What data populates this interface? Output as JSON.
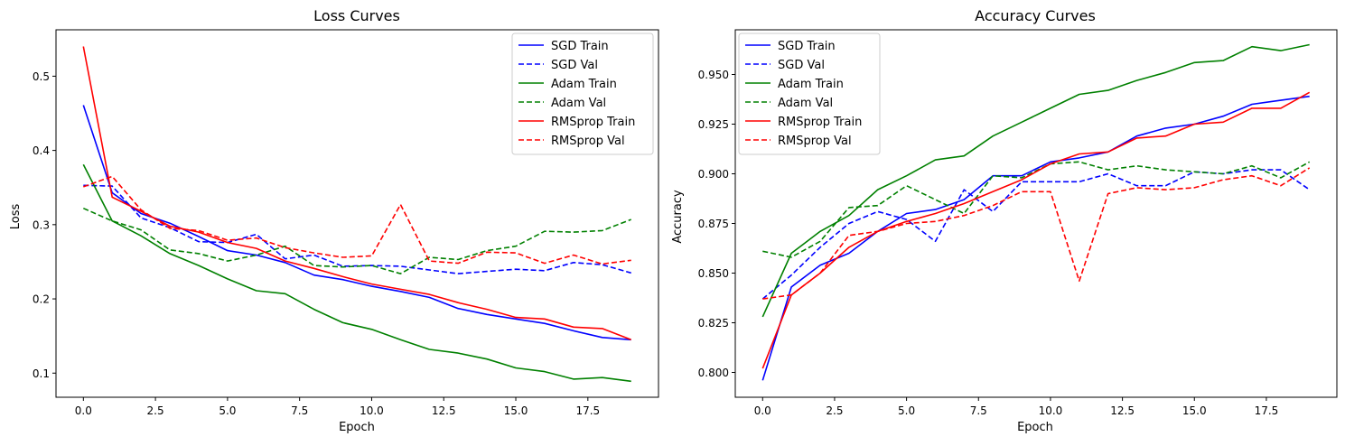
{
  "chart_data": [
    {
      "type": "line",
      "title": "Loss Curves",
      "xlabel": "Epoch",
      "ylabel": "Loss",
      "xlim": [
        -0.95,
        19.95
      ],
      "ylim": [
        0.0675,
        0.5625
      ],
      "xticks": [
        0,
        2.5,
        5,
        7.5,
        10,
        12.5,
        15,
        17.5
      ],
      "xtick_labels": [
        "0.0",
        "2.5",
        "5.0",
        "7.5",
        "10.0",
        "12.5",
        "15.0",
        "17.5"
      ],
      "yticks": [
        0.1,
        0.2,
        0.3,
        0.4,
        0.5
      ],
      "ytick_labels": [
        "0.1",
        "0.2",
        "0.3",
        "0.4",
        "0.5"
      ],
      "grid": false,
      "legend_position": "top-right",
      "x": [
        0,
        1,
        2,
        3,
        4,
        5,
        6,
        7,
        8,
        9,
        10,
        11,
        12,
        13,
        14,
        15,
        16,
        17,
        18,
        19
      ],
      "series": [
        {
          "name": "SGD Train",
          "color": "#0000ff",
          "dash": "solid",
          "values": [
            0.461,
            0.343,
            0.315,
            0.302,
            0.284,
            0.265,
            0.259,
            0.249,
            0.232,
            0.226,
            0.217,
            0.21,
            0.202,
            0.187,
            0.179,
            0.173,
            0.167,
            0.157,
            0.148,
            0.145
          ]
        },
        {
          "name": "SGD Val",
          "color": "#0000ff",
          "dash": "dashed",
          "values": [
            0.353,
            0.352,
            0.309,
            0.296,
            0.277,
            0.276,
            0.287,
            0.254,
            0.259,
            0.244,
            0.245,
            0.244,
            0.239,
            0.234,
            0.237,
            0.24,
            0.238,
            0.249,
            0.246,
            0.235
          ]
        },
        {
          "name": "Adam Train",
          "color": "#008000",
          "dash": "solid",
          "values": [
            0.381,
            0.305,
            0.285,
            0.261,
            0.245,
            0.227,
            0.211,
            0.207,
            0.186,
            0.168,
            0.159,
            0.145,
            0.132,
            0.127,
            0.119,
            0.107,
            0.102,
            0.092,
            0.094,
            0.089
          ]
        },
        {
          "name": "Adam Val",
          "color": "#008000",
          "dash": "dashed",
          "values": [
            0.322,
            0.305,
            0.293,
            0.266,
            0.261,
            0.251,
            0.259,
            0.271,
            0.245,
            0.243,
            0.245,
            0.234,
            0.256,
            0.253,
            0.265,
            0.271,
            0.291,
            0.29,
            0.292,
            0.307
          ]
        },
        {
          "name": "RMSprop Train",
          "color": "#ff0000",
          "dash": "solid",
          "values": [
            0.54,
            0.337,
            0.318,
            0.298,
            0.29,
            0.276,
            0.268,
            0.251,
            0.241,
            0.23,
            0.22,
            0.213,
            0.206,
            0.195,
            0.186,
            0.175,
            0.173,
            0.162,
            0.16,
            0.145
          ]
        },
        {
          "name": "RMSprop Val",
          "color": "#ff0000",
          "dash": "dashed",
          "values": [
            0.351,
            0.365,
            0.32,
            0.295,
            0.292,
            0.279,
            0.282,
            0.269,
            0.262,
            0.256,
            0.258,
            0.327,
            0.251,
            0.248,
            0.263,
            0.262,
            0.248,
            0.259,
            0.247,
            0.252
          ]
        }
      ]
    },
    {
      "type": "line",
      "title": "Accuracy Curves",
      "xlabel": "Epoch",
      "ylabel": "Accuracy",
      "xlim": [
        -0.95,
        19.95
      ],
      "ylim": [
        0.7875,
        0.9725
      ],
      "xticks": [
        0,
        2.5,
        5,
        7.5,
        10,
        12.5,
        15,
        17.5
      ],
      "xtick_labels": [
        "0.0",
        "2.5",
        "5.0",
        "7.5",
        "10.0",
        "12.5",
        "15.0",
        "17.5"
      ],
      "yticks": [
        0.8,
        0.825,
        0.85,
        0.875,
        0.9,
        0.925,
        0.95
      ],
      "ytick_labels": [
        "0.800",
        "0.825",
        "0.850",
        "0.875",
        "0.900",
        "0.925",
        "0.950"
      ],
      "grid": false,
      "legend_position": "top-left",
      "x": [
        0,
        1,
        2,
        3,
        4,
        5,
        6,
        7,
        8,
        9,
        10,
        11,
        12,
        13,
        14,
        15,
        16,
        17,
        18,
        19
      ],
      "series": [
        {
          "name": "SGD Train",
          "color": "#0000ff",
          "dash": "solid",
          "values": [
            0.796,
            0.843,
            0.854,
            0.86,
            0.871,
            0.88,
            0.882,
            0.887,
            0.899,
            0.899,
            0.906,
            0.908,
            0.911,
            0.919,
            0.923,
            0.925,
            0.929,
            0.935,
            0.937,
            0.939
          ]
        },
        {
          "name": "SGD Val",
          "color": "#0000ff",
          "dash": "dashed",
          "values": [
            0.837,
            0.849,
            0.863,
            0.875,
            0.881,
            0.877,
            0.866,
            0.892,
            0.881,
            0.896,
            0.896,
            0.896,
            0.9,
            0.894,
            0.894,
            0.901,
            0.9,
            0.902,
            0.902,
            0.892
          ]
        },
        {
          "name": "Adam Train",
          "color": "#008000",
          "dash": "solid",
          "values": [
            0.828,
            0.86,
            0.871,
            0.879,
            0.892,
            0.899,
            0.907,
            0.909,
            0.919,
            0.926,
            0.933,
            0.94,
            0.942,
            0.947,
            0.951,
            0.956,
            0.957,
            0.964,
            0.962,
            0.965
          ]
        },
        {
          "name": "Adam Val",
          "color": "#008000",
          "dash": "dashed",
          "values": [
            0.861,
            0.858,
            0.866,
            0.883,
            0.884,
            0.894,
            0.887,
            0.88,
            0.899,
            0.898,
            0.905,
            0.906,
            0.902,
            0.904,
            0.902,
            0.901,
            0.9,
            0.904,
            0.898,
            0.906
          ]
        },
        {
          "name": "RMSprop Train",
          "color": "#ff0000",
          "dash": "solid",
          "values": [
            0.802,
            0.839,
            0.85,
            0.863,
            0.871,
            0.876,
            0.88,
            0.885,
            0.891,
            0.897,
            0.905,
            0.91,
            0.911,
            0.918,
            0.919,
            0.925,
            0.926,
            0.933,
            0.933,
            0.941
          ]
        },
        {
          "name": "RMSprop Val",
          "color": "#ff0000",
          "dash": "dashed",
          "values": [
            0.837,
            0.839,
            0.85,
            0.869,
            0.871,
            0.875,
            0.876,
            0.879,
            0.884,
            0.891,
            0.891,
            0.846,
            0.89,
            0.893,
            0.892,
            0.893,
            0.897,
            0.899,
            0.894,
            0.903
          ]
        }
      ]
    }
  ]
}
